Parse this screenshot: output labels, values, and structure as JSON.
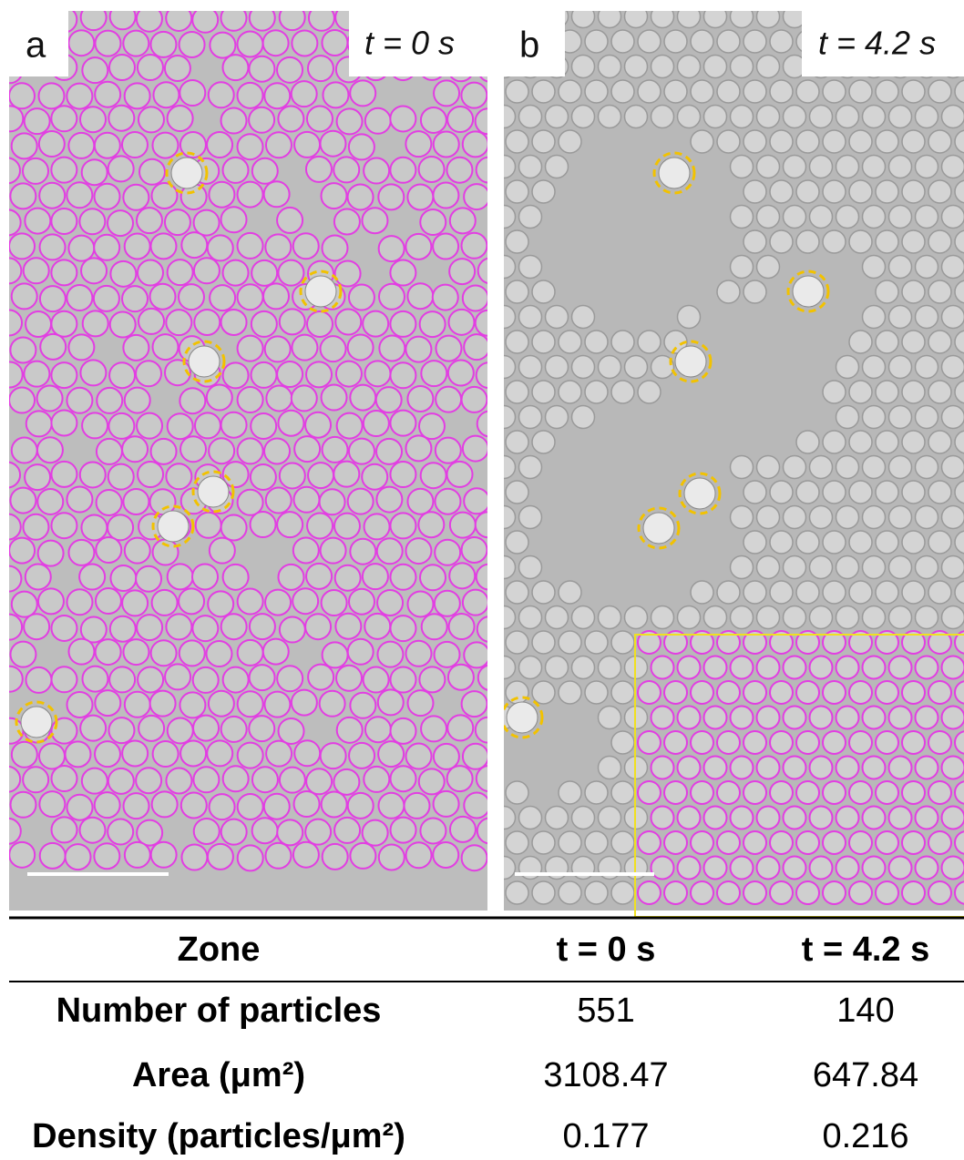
{
  "panels": [
    {
      "label": "a",
      "time": "t = 0 s"
    },
    {
      "label": "b",
      "time": "t = 4.2 s"
    }
  ],
  "table": {
    "header": [
      "Zone",
      "t = 0 s",
      "t = 4.2 s"
    ],
    "rows": [
      [
        "Number of particles",
        "551",
        "140"
      ],
      [
        "Area (μm²)",
        "3108.47",
        "647.84"
      ],
      [
        "Density (particles/μm²)",
        "0.177",
        "0.216"
      ]
    ]
  }
}
